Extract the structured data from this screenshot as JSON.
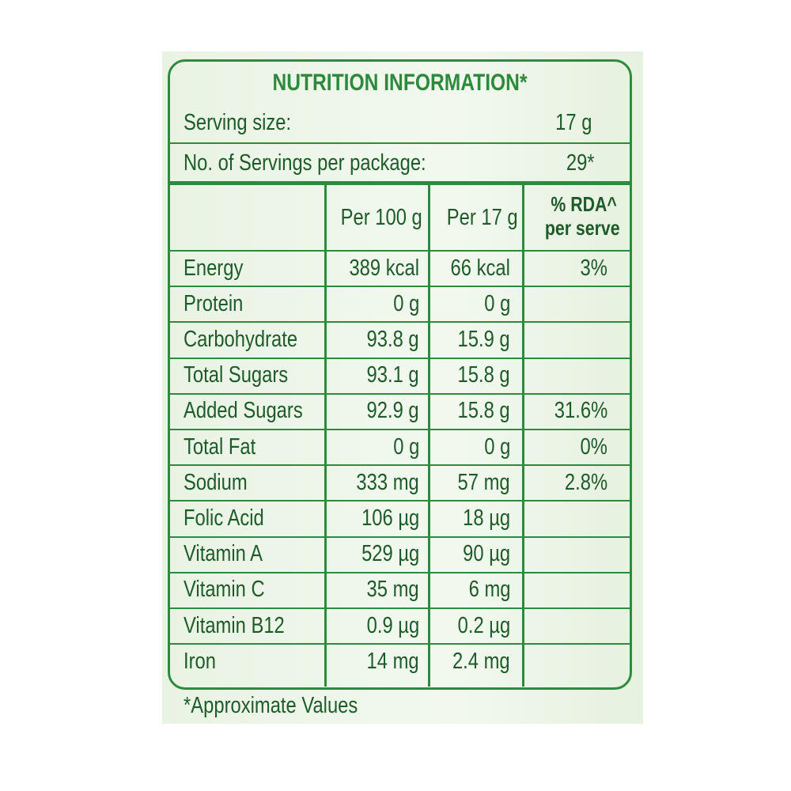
{
  "title": "NUTRITION INFORMATION*",
  "serving_size": {
    "label": "Serving size:",
    "value": "17 g"
  },
  "servings_per_package": {
    "label": "No. of Servings per package:",
    "value": "29*"
  },
  "table": {
    "header": {
      "per_100g": "Per 100 g",
      "per_serve": "Per 17 g",
      "rda": [
        "% RDA^",
        "per serve"
      ]
    },
    "rows": [
      {
        "nutrient": "Energy",
        "per_100g": "389 kcal",
        "per_serve": "66 kcal",
        "rda": "3%"
      },
      {
        "nutrient": "Protein",
        "per_100g": "0 g",
        "per_serve": "0 g"
      },
      {
        "nutrient": "Carbohydrate",
        "per_100g": "93.8 g",
        "per_serve": "15.9 g"
      },
      {
        "nutrient": "Total Sugars",
        "per_100g": "93.1 g",
        "per_serve": "15.8 g"
      },
      {
        "nutrient": "Added Sugars",
        "per_100g": "92.9 g",
        "per_serve": "15.8 g",
        "rda": "31.6%"
      },
      {
        "nutrient": "Total Fat",
        "per_100g": "0 g",
        "per_serve": "0 g",
        "rda": "0%"
      },
      {
        "nutrient": "Sodium",
        "per_100g": "333 mg",
        "per_serve": "57 mg",
        "rda": "2.8%"
      },
      {
        "nutrient": "Folic Acid",
        "per_100g": "106 µg",
        "per_serve": "18 µg"
      },
      {
        "nutrient": "Vitamin A",
        "per_100g": "529 µg",
        "per_serve": "90 µg"
      },
      {
        "nutrient": "Vitamin C",
        "per_100g": "35 mg",
        "per_serve": "6 mg"
      },
      {
        "nutrient": "Vitamin B12",
        "per_100g": "0.9 µg",
        "per_serve": "0.2 µg"
      },
      {
        "nutrient": "Iron",
        "per_100g": "14 mg",
        "per_serve": "2.4 mg"
      }
    ]
  },
  "footnote": "*Approximate Values"
}
